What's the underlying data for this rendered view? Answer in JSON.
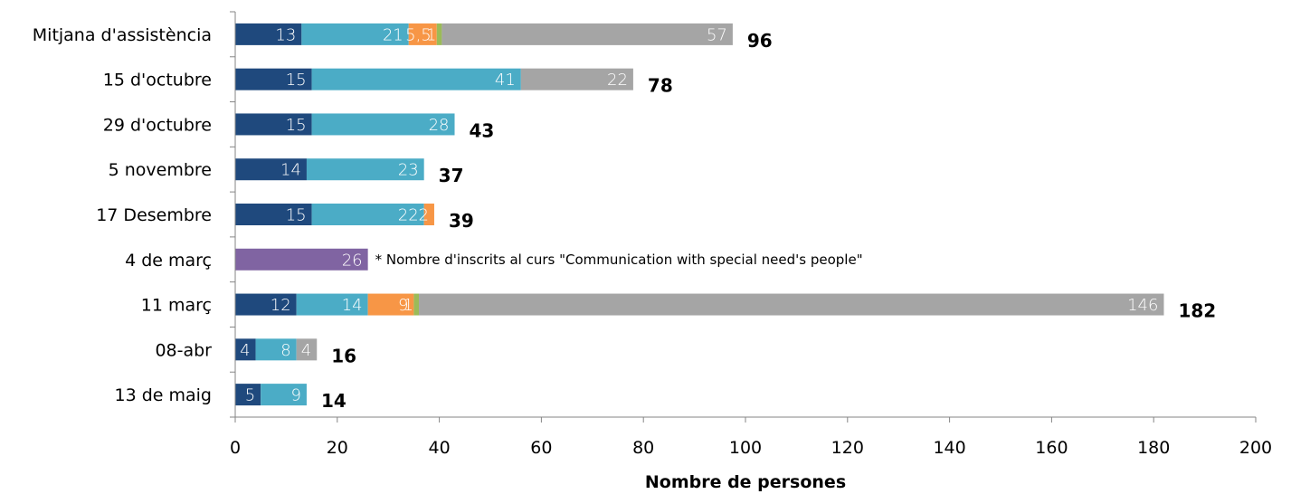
{
  "chart_data": {
    "type": "bar",
    "orientation": "horizontal",
    "stacked": true,
    "xlabel": "Nombre de persones",
    "xlim": [
      0,
      200
    ],
    "xticks": [
      0,
      20,
      40,
      60,
      80,
      100,
      120,
      140,
      160,
      180,
      200
    ],
    "categories": [
      "Mitjana d'assistència",
      "15 d'octubre",
      "29 d'octubre",
      "5 novembre",
      "17 Desembre",
      "4 de març",
      "11 març",
      "08-abr",
      "13 de maig"
    ],
    "series": [
      {
        "color": "#1f497d",
        "values": [
          13,
          15,
          15,
          14,
          15,
          0,
          12,
          4,
          5
        ]
      },
      {
        "color": "#4bacc6",
        "values": [
          21,
          41,
          28,
          23,
          22,
          0,
          14,
          8,
          9
        ]
      },
      {
        "color": "#f79646",
        "values": [
          5.5,
          0,
          0,
          0,
          2,
          0,
          9,
          0,
          0
        ]
      },
      {
        "color": "#9bbb59",
        "values": [
          1,
          0,
          0,
          0,
          0,
          0,
          1,
          0,
          0
        ]
      },
      {
        "color": "#a5a5a5",
        "values": [
          57,
          22,
          0,
          0,
          0,
          0,
          146,
          4,
          0
        ]
      },
      {
        "color": "#8064a2",
        "values": [
          0,
          0,
          0,
          0,
          0,
          26,
          0,
          0,
          0
        ]
      }
    ],
    "segment_labels": [
      [
        "13",
        "21",
        "5,5",
        "1",
        "57",
        ""
      ],
      [
        "15",
        "41",
        "",
        "",
        "22",
        ""
      ],
      [
        "15",
        "28",
        "",
        "",
        "",
        ""
      ],
      [
        "14",
        "23",
        "",
        "",
        "",
        ""
      ],
      [
        "15",
        "22",
        "2",
        "",
        "",
        ""
      ],
      [
        "",
        "",
        "",
        "",
        "",
        "26"
      ],
      [
        "12",
        "14",
        "9",
        "1",
        "146",
        ""
      ],
      [
        "4",
        "8",
        "",
        "",
        "4",
        ""
      ],
      [
        "5",
        "9",
        "",
        "",
        "",
        ""
      ]
    ],
    "totals": [
      "96",
      "78",
      "43",
      "37",
      "39",
      "",
      "182",
      "16",
      "14"
    ],
    "annotations": [
      {
        "category": "4 de març",
        "text": "* Nombre d'inscrits al curs \"Communication with special need's people\""
      }
    ],
    "grid": false,
    "legend": "none"
  }
}
